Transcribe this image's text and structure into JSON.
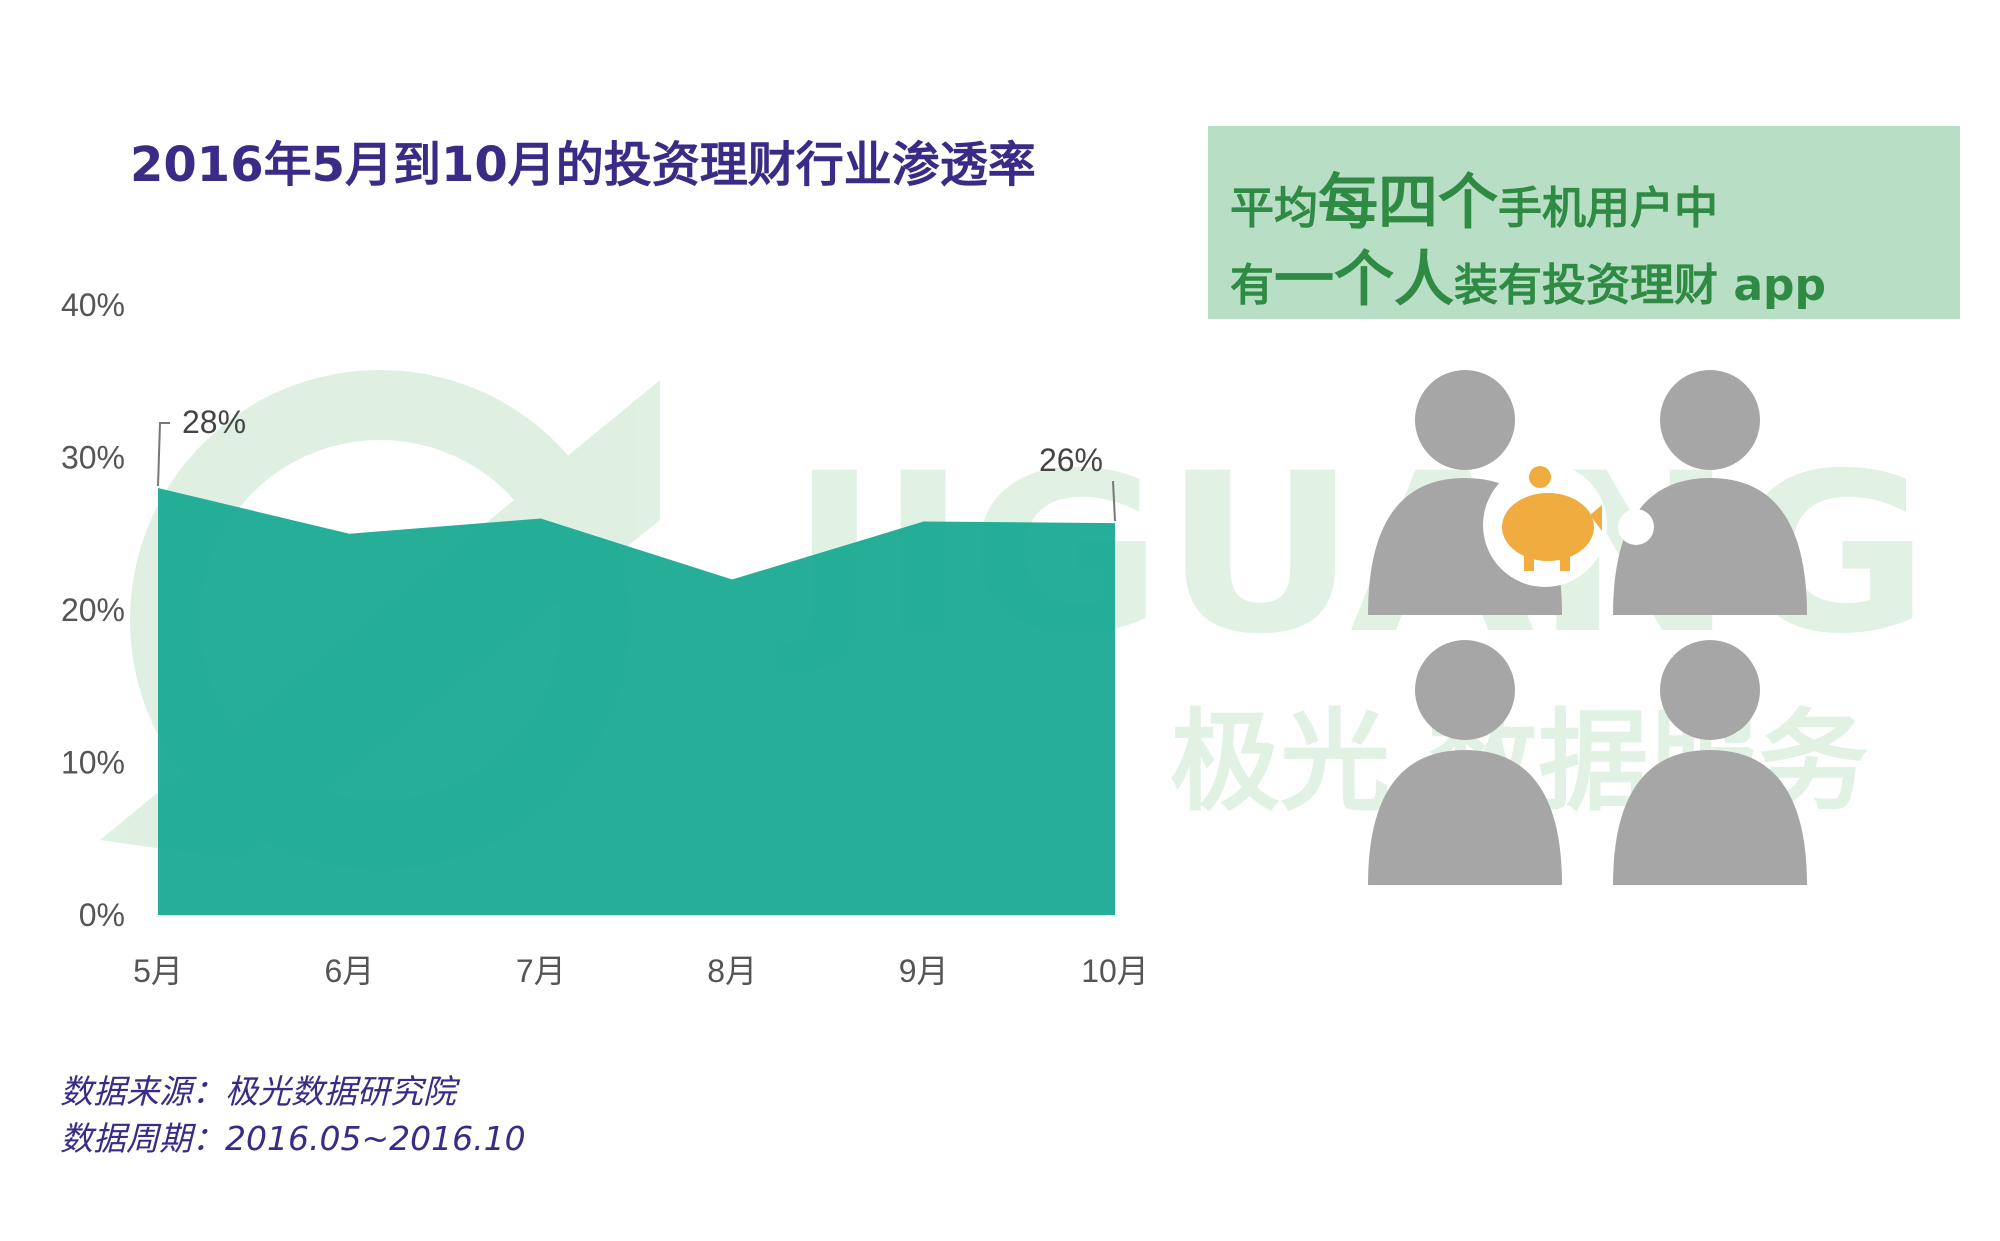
{
  "chart_data": {
    "type": "area",
    "title": "2016年5月到10月的投资理财行业渗透率",
    "categories": [
      "5月",
      "6月",
      "7月",
      "8月",
      "9月",
      "10月"
    ],
    "series": [
      {
        "values": [
          28,
          25,
          26,
          22,
          25.8,
          25.7
        ]
      }
    ],
    "ylim": [
      0,
      40
    ],
    "yticks": [
      "0%",
      "10%",
      "20%",
      "30%",
      "40%"
    ],
    "data_labels": [
      {
        "category": "5月",
        "text": "28%"
      },
      {
        "category": "10月",
        "text": "26%"
      }
    ],
    "grid": false,
    "color": "#18a992"
  },
  "source": {
    "line1": "数据来源：极光数据研究院",
    "line2": "数据周期：2016.05~2016.10"
  },
  "callout": {
    "line1_a": "平均",
    "line1_b": "每四个",
    "line1_c": "手机用户中",
    "line2_a": "有",
    "line2_b": "一个人",
    "line2_c": "装有投资理财 app",
    "bg_color": "#b8dec6",
    "text_color": "#2f8a43"
  },
  "people_illustration": {
    "count": 4,
    "figure_color": "#a6a6a6",
    "icon": "piggy-bank-icon",
    "icon_color": "#f0ac3e"
  },
  "watermark": {
    "brand": "JIGUANG",
    "subtitle": "极光 数据服务",
    "color": "#c9e6cf"
  }
}
